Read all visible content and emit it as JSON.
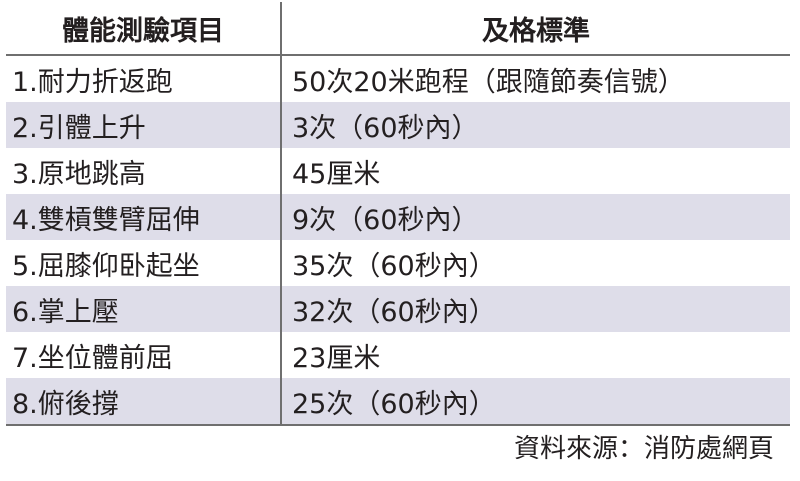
{
  "table": {
    "headers": [
      "體能測驗項目",
      "及格標準"
    ],
    "rows": [
      {
        "item": "1.耐力折返跑",
        "standard": "50次20米跑程（跟隨節奏信號）"
      },
      {
        "item": "2.引體上升",
        "standard": "3次（60秒內）"
      },
      {
        "item": "3.原地跳高",
        "standard": "45厘米"
      },
      {
        "item": "4.雙槓雙臂屈伸",
        "standard": "9次（60秒內）"
      },
      {
        "item": "5.屈膝仰卧起坐",
        "standard": "35次（60秒內）"
      },
      {
        "item": "6.掌上壓",
        "standard": "32次（60秒內）"
      },
      {
        "item": "7.坐位體前屈",
        "standard": "23厘米"
      },
      {
        "item": "8.俯後撐",
        "standard": "25次（60秒內）"
      }
    ],
    "shaded_row_color": "#dedde9",
    "rule_color": "#6f6f6f"
  },
  "source_note": "資料來源：消防處網頁"
}
